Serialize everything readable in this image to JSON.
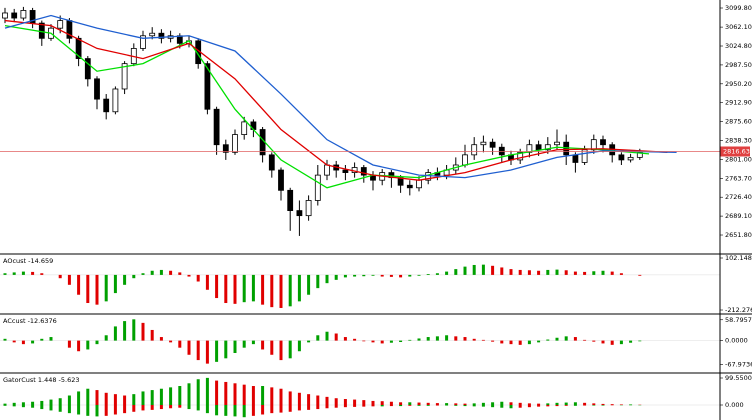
{
  "chart_data": [
    {
      "type": "candlestick",
      "open": [
        3080,
        3090,
        3080,
        3095,
        3070,
        3040,
        3060,
        3075,
        3040,
        3000,
        2960,
        2920,
        2895,
        2940,
        2990,
        3020,
        3045,
        3050,
        3040,
        3045,
        3030,
        3035,
        2990,
        2900,
        2830,
        2815,
        2850,
        2875,
        2860,
        2810,
        2780,
        2740,
        2700,
        2690,
        2720,
        2770,
        2790,
        2780,
        2775,
        2785,
        2770,
        2760,
        2775,
        2765,
        2750,
        2745,
        2760,
        2775,
        2770,
        2780,
        2790,
        2810,
        2830,
        2835,
        2825,
        2810,
        2800,
        2815,
        2830,
        2820,
        2830,
        2835,
        2810,
        2795,
        2820,
        2840,
        2830,
        2810,
        2800,
        2805
      ],
      "high": [
        3100,
        3098,
        3102,
        3100,
        3075,
        3068,
        3085,
        3080,
        3045,
        3005,
        2965,
        2930,
        2945,
        2995,
        3030,
        3055,
        3062,
        3058,
        3055,
        3050,
        3045,
        3040,
        2995,
        2905,
        2840,
        2860,
        2885,
        2880,
        2865,
        2815,
        2785,
        2745,
        2720,
        2730,
        2790,
        2800,
        2798,
        2790,
        2795,
        2790,
        2778,
        2782,
        2780,
        2770,
        2760,
        2768,
        2782,
        2785,
        2790,
        2805,
        2830,
        2845,
        2848,
        2842,
        2832,
        2818,
        2822,
        2840,
        2838,
        2845,
        2860,
        2850,
        2815,
        2828,
        2850,
        2848,
        2835,
        2815,
        2812,
        2822
      ],
      "low": [
        3070,
        3072,
        3075,
        3060,
        3025,
        3035,
        3050,
        3030,
        2985,
        2945,
        2900,
        2880,
        2890,
        2930,
        2985,
        3015,
        3038,
        3030,
        3032,
        3020,
        3022,
        2980,
        2890,
        2810,
        2800,
        2810,
        2840,
        2845,
        2795,
        2765,
        2720,
        2660,
        2650,
        2680,
        2710,
        2760,
        2765,
        2760,
        2765,
        2755,
        2740,
        2750,
        2745,
        2735,
        2730,
        2738,
        2752,
        2760,
        2762,
        2772,
        2785,
        2800,
        2815,
        2810,
        2795,
        2790,
        2792,
        2805,
        2808,
        2812,
        2820,
        2790,
        2775,
        2790,
        2812,
        2815,
        2795,
        2790,
        2795,
        2800
      ],
      "close": [
        3090,
        3080,
        3095,
        3070,
        3040,
        3060,
        3075,
        3040,
        3000,
        2960,
        2920,
        2895,
        2940,
        2990,
        3020,
        3045,
        3050,
        3040,
        3045,
        3030,
        3035,
        2990,
        2900,
        2830,
        2815,
        2850,
        2875,
        2860,
        2810,
        2780,
        2740,
        2700,
        2690,
        2720,
        2770,
        2790,
        2780,
        2775,
        2785,
        2770,
        2760,
        2775,
        2765,
        2750,
        2745,
        2760,
        2775,
        2770,
        2780,
        2790,
        2810,
        2830,
        2835,
        2825,
        2810,
        2800,
        2815,
        2830,
        2820,
        2830,
        2835,
        2810,
        2795,
        2820,
        2840,
        2830,
        2810,
        2800,
        2805,
        2815
      ],
      "lines": [
        {
          "color": "#00e000",
          "x": [
            0,
            5,
            10,
            15,
            20,
            25,
            30,
            35,
            40,
            45,
            50,
            55,
            60,
            65,
            70
          ],
          "values": [
            3065,
            3050,
            2975,
            2990,
            3035,
            2900,
            2800,
            2745,
            2770,
            2765,
            2790,
            2810,
            2825,
            2820,
            2812
          ]
        },
        {
          "color": "#e00000",
          "x": [
            0,
            5,
            10,
            15,
            20,
            25,
            30,
            35,
            40,
            45,
            50,
            55,
            60,
            65,
            72
          ],
          "values": [
            3075,
            3065,
            3020,
            3000,
            3030,
            2960,
            2860,
            2790,
            2770,
            2760,
            2775,
            2800,
            2820,
            2822,
            2815
          ]
        },
        {
          "color": "#1f5fd0",
          "x": [
            0,
            5,
            10,
            15,
            20,
            25,
            30,
            35,
            40,
            45,
            50,
            55,
            60,
            65,
            73
          ],
          "values": [
            3060,
            3085,
            3060,
            3040,
            3045,
            3015,
            2930,
            2840,
            2790,
            2770,
            2765,
            2780,
            2805,
            2818,
            2815
          ]
        }
      ],
      "price_line": {
        "value": 2816.63,
        "label": "2816.63"
      },
      "ylim": [
        2616.3,
        3115.6
      ],
      "yticks": [
        {
          "value": 3099.8,
          "label": "3099.80"
        },
        {
          "value": 3062.1,
          "label": "3062.10"
        },
        {
          "value": 3024.8,
          "label": "3024.80"
        },
        {
          "value": 2987.5,
          "label": "2987.50"
        },
        {
          "value": 2950.2,
          "label": "2950.20"
        },
        {
          "value": 2912.9,
          "label": "2912.90"
        },
        {
          "value": 2875.6,
          "label": "2875.60"
        },
        {
          "value": 2838.3,
          "label": "2838.30"
        },
        {
          "value": 2801.0,
          "label": "2801.00"
        },
        {
          "value": 2763.7,
          "label": "2763.70"
        },
        {
          "value": 2726.4,
          "label": "2726.40"
        },
        {
          "value": 2689.1,
          "label": "2689.10"
        },
        {
          "value": 2651.8,
          "label": "2651.80"
        }
      ]
    },
    {
      "type": "bar",
      "label": "AOcust -14.659",
      "up_color": "#00a000",
      "down_color": "#e00000",
      "series": [
        {
          "values": [
            10,
            15,
            20,
            18,
            10,
            0,
            -20,
            -60,
            -120,
            -170,
            -180,
            -160,
            -110,
            -60,
            -20,
            10,
            25,
            30,
            25,
            15,
            -10,
            -40,
            -90,
            -140,
            -170,
            -175,
            -165,
            -160,
            -180,
            -195,
            -200,
            -190,
            -160,
            -120,
            -80,
            -50,
            -30,
            -15,
            -10,
            -8,
            -5,
            -10,
            -12,
            -15,
            -10,
            -5,
            5,
            10,
            20,
            35,
            50,
            60,
            62,
            55,
            45,
            35,
            30,
            28,
            25,
            30,
            32,
            28,
            20,
            18,
            22,
            25,
            20,
            10,
            0,
            -5
          ]
        }
      ],
      "ylim": [
        -230.4,
        120.3
      ],
      "yticks": [
        {
          "value": 102.148,
          "label": "102.148"
        },
        -212.276
      ]
    },
    {
      "type": "bar",
      "label": "ACcust -12.6376",
      "up_color": "#00a000",
      "down_color": "#e00000",
      "series": [
        {
          "values": [
            5,
            -5,
            -10,
            -8,
            5,
            10,
            0,
            -20,
            -30,
            -25,
            -10,
            15,
            40,
            55,
            60,
            50,
            30,
            10,
            -5,
            -20,
            -40,
            -55,
            -65,
            -60,
            -50,
            -35,
            -20,
            -10,
            -25,
            -40,
            -55,
            -50,
            -30,
            -5,
            15,
            25,
            20,
            10,
            5,
            -2,
            -5,
            -8,
            -6,
            -4,
            2,
            6,
            10,
            12,
            15,
            12,
            10,
            5,
            2,
            -3,
            -8,
            -10,
            -12,
            -10,
            -5,
            3,
            8,
            12,
            10,
            2,
            -3,
            -8,
            -12,
            -10,
            -6,
            -2
          ]
        }
      ],
      "ylim": [
        -88.6,
        72.2
      ],
      "yticks": [
        58.7957,
        {
          "value": 0,
          "label": "0.0000"
        },
        -67.9736
      ]
    },
    {
      "type": "bar",
      "label": "GatorCust 1.448 -5.623",
      "up_color": "#00a000",
      "down_color": "#e00000",
      "series": [
        {
          "values": [
            5,
            8,
            10,
            12,
            15,
            20,
            25,
            35,
            50,
            60,
            55,
            45,
            40,
            35,
            40,
            50,
            55,
            60,
            65,
            70,
            80,
            95,
            100,
            90,
            85,
            80,
            75,
            70,
            70,
            65,
            60,
            50,
            45,
            40,
            35,
            30,
            25,
            22,
            20,
            18,
            15,
            14,
            12,
            10,
            10,
            9,
            8,
            7,
            7,
            6,
            5,
            6,
            8,
            10,
            12,
            10,
            8,
            6,
            5,
            6,
            8,
            9,
            10,
            8,
            6,
            4,
            3,
            2,
            2,
            1
          ]
        },
        {
          "values": [
            -3,
            -5,
            -8,
            -10,
            -15,
            -20,
            -25,
            -30,
            -35,
            -40,
            -42,
            -40,
            -35,
            -30,
            -25,
            -20,
            -18,
            -15,
            -12,
            -10,
            -15,
            -20,
            -30,
            -38,
            -40,
            -42,
            -45,
            -40,
            -35,
            -30,
            -28,
            -25,
            -20,
            -18,
            -15,
            -12,
            -10,
            -8,
            -7,
            -6,
            -5,
            -5,
            -4,
            -4,
            -3,
            -3,
            -3,
            -2,
            -2,
            -3,
            -4,
            -5,
            -6,
            -8,
            -10,
            -12,
            -10,
            -8,
            -6,
            -5,
            -4,
            -3,
            -3,
            -2,
            -2,
            -2,
            -1,
            -1,
            -1,
            -1
          ]
        }
      ],
      "ylim": [
        -55.3,
        114.3
      ],
      "yticks": [
        {
          "value": 99.55,
          "label": "99.5500"
        },
        {
          "value": 0,
          "label": "0.000"
        }
      ]
    }
  ]
}
